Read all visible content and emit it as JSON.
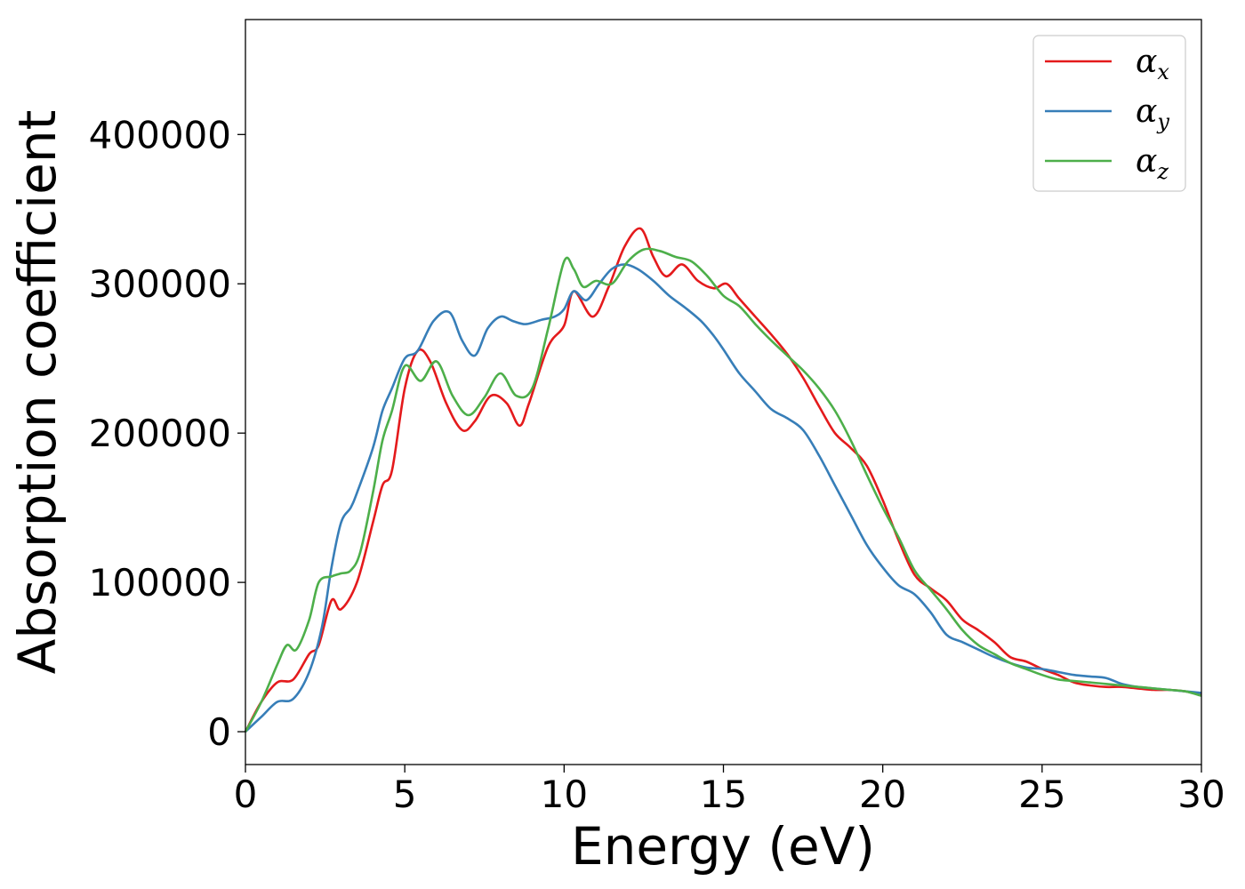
{
  "chart_data": {
    "type": "line",
    "title": "",
    "xlabel": "Energy (eV)",
    "ylabel": "Absorption coefficient",
    "xlim": [
      0,
      30
    ],
    "ylim": [
      -22000,
      477000
    ],
    "x_ticks": [
      "0",
      "5",
      "10",
      "15",
      "20",
      "25",
      "30"
    ],
    "y_ticks": [
      "0",
      "100000",
      "200000",
      "300000",
      "400000"
    ],
    "grid": false,
    "legend_position": "top-right",
    "series": [
      {
        "name": "αx",
        "symbol": "α",
        "subscript": "x",
        "color": "#e41a1c",
        "x": [
          0,
          0.5,
          1,
          1.5,
          2,
          2.3,
          2.7,
          3,
          3.5,
          4,
          4.3,
          4.6,
          5,
          5.4,
          5.8,
          6.3,
          6.8,
          7.2,
          7.7,
          8.2,
          8.6,
          8.9,
          9.5,
          10,
          10.3,
          10.9,
          11.4,
          11.9,
          12.4,
          12.8,
          13.2,
          13.7,
          14.2,
          14.7,
          15.1,
          15.5,
          16,
          16.5,
          17,
          17.5,
          18,
          18.5,
          19,
          19.5,
          20,
          20.5,
          21,
          21.5,
          22,
          22.5,
          23,
          23.5,
          24,
          24.5,
          25,
          25.5,
          26,
          26.5,
          27,
          27.5,
          28,
          28.5,
          29,
          29.5,
          30
        ],
        "y": [
          0,
          20000,
          33000,
          35000,
          52000,
          58000,
          88000,
          82000,
          100000,
          140000,
          165000,
          175000,
          230000,
          255000,
          248000,
          220000,
          202000,
          208000,
          225000,
          220000,
          205000,
          220000,
          258000,
          272000,
          295000,
          278000,
          298000,
          325000,
          337000,
          318000,
          305000,
          313000,
          302000,
          297000,
          300000,
          290000,
          278000,
          266000,
          253000,
          237000,
          218000,
          200000,
          190000,
          178000,
          155000,
          128000,
          105000,
          96000,
          88000,
          75000,
          68000,
          60000,
          50000,
          47000,
          42000,
          38000,
          33000,
          31000,
          30000,
          30000,
          29000,
          28000,
          28000,
          27000,
          25000
        ]
      },
      {
        "name": "αy",
        "symbol": "α",
        "subscript": "y",
        "color": "#377eb8",
        "x": [
          0,
          0.5,
          1,
          1.5,
          2,
          2.4,
          2.7,
          3,
          3.3,
          3.5,
          4,
          4.3,
          4.6,
          5,
          5.4,
          5.9,
          6.4,
          6.8,
          7.2,
          7.6,
          8,
          8.4,
          8.8,
          9.3,
          9.7,
          10,
          10.3,
          10.7,
          11.1,
          11.5,
          11.9,
          12.3,
          12.8,
          13.3,
          13.8,
          14.3,
          14.7,
          15,
          15.5,
          16,
          16.5,
          17,
          17.5,
          18,
          18.5,
          19,
          19.5,
          20,
          20.5,
          21,
          21.5,
          22,
          22.5,
          23,
          23.5,
          24,
          24.5,
          25,
          25.5,
          26,
          26.5,
          27,
          27.5,
          28,
          28.5,
          29,
          29.5,
          30
        ],
        "y": [
          0,
          10000,
          20000,
          22000,
          40000,
          70000,
          110000,
          140000,
          150000,
          160000,
          190000,
          215000,
          230000,
          250000,
          255000,
          275000,
          281000,
          262000,
          252000,
          270000,
          278000,
          275000,
          273000,
          276000,
          278000,
          283000,
          295000,
          289000,
          300000,
          310000,
          313000,
          310000,
          302000,
          292000,
          284000,
          275000,
          265000,
          256000,
          240000,
          228000,
          216000,
          210000,
          202000,
          185000,
          165000,
          145000,
          125000,
          110000,
          98000,
          92000,
          80000,
          65000,
          60000,
          55000,
          50000,
          46000,
          43000,
          42000,
          40000,
          38000,
          37000,
          36000,
          32000,
          30000,
          29000,
          28000,
          27000,
          26000
        ]
      },
      {
        "name": "αz",
        "symbol": "α",
        "subscript": "z",
        "color": "#4daf4a",
        "x": [
          0,
          0.5,
          1,
          1.3,
          1.6,
          2,
          2.3,
          2.7,
          3,
          3.3,
          3.6,
          4,
          4.3,
          4.6,
          5,
          5.5,
          6,
          6.5,
          7,
          7.5,
          8,
          8.5,
          9,
          9.5,
          10,
          10.3,
          10.6,
          11,
          11.5,
          12,
          12.5,
          13,
          13.5,
          14,
          14.5,
          15,
          15.5,
          16,
          16.5,
          17,
          17.5,
          18,
          18.5,
          19,
          19.5,
          20,
          20.5,
          21,
          21.5,
          22,
          22.5,
          23,
          23.5,
          24,
          24.5,
          25,
          25.5,
          26,
          26.5,
          27,
          27.5,
          28,
          28.5,
          29,
          29.5,
          30
        ],
        "y": [
          0,
          20000,
          45000,
          58000,
          55000,
          75000,
          100000,
          104000,
          106000,
          108000,
          120000,
          160000,
          195000,
          215000,
          245000,
          235000,
          248000,
          225000,
          212000,
          224000,
          240000,
          225000,
          230000,
          270000,
          315000,
          310000,
          298000,
          302000,
          300000,
          315000,
          323000,
          322000,
          318000,
          315000,
          305000,
          292000,
          285000,
          273000,
          262000,
          252000,
          242000,
          230000,
          215000,
          195000,
          172000,
          150000,
          130000,
          108000,
          95000,
          82000,
          68000,
          58000,
          52000,
          46000,
          42000,
          38000,
          35000,
          34000,
          33000,
          32000,
          31000,
          30000,
          29000,
          28000,
          27000,
          24000
        ]
      }
    ]
  }
}
